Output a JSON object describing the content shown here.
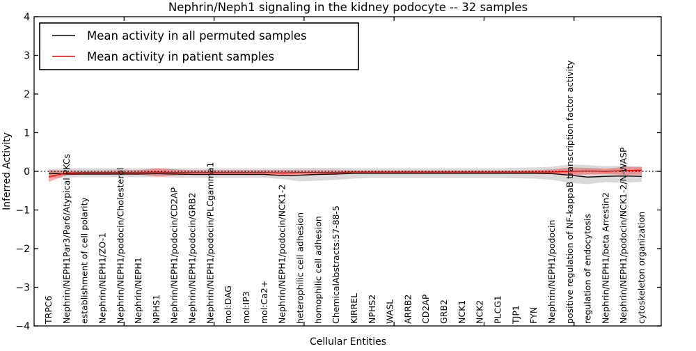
{
  "chart_data": {
    "type": "line",
    "title": "Nephrin/Neph1 signaling in the kidney podocyte -- 32 samples",
    "xlabel": "Cellular Entities",
    "ylabel": "Inferred Activity",
    "ylim": [
      -4,
      4
    ],
    "yticks": [
      4,
      3,
      2,
      1,
      0,
      -1,
      -2,
      -3,
      -4
    ],
    "ytick_labels": [
      "4",
      "3",
      "2",
      "1",
      "0",
      "−1",
      "−2",
      "−3",
      "−4"
    ],
    "grid": false,
    "zero_line": true,
    "legend_position": "upper-left",
    "categories": [
      "TRPC6",
      "Nephrin/NEPH1Par3/Par6/Atypical PKCs",
      "establishment of cell polarity",
      "Nephrin/NEPH1/ZO-1",
      "Nephrin/NEPH1/podocin/Cholesterol",
      "Nephrin/NEPH1",
      "NPHS1",
      "Nephrin/NEPH1/podocin/CD2AP",
      "Nephrin/NEPH1/podocin/GRB2",
      "Nephrin/NEPH1/podocin/PLCgamma1",
      "mol:DAG",
      "mol:IP3",
      "mol:Ca2+",
      "Nephrin/NEPH1/podocin/NCK1-2",
      "heterophilic cell adhesion",
      "homophilic cell adhesion",
      "ChemicalAbstracts:57-88-5",
      "KIRREL",
      "NPHS2",
      "WASL",
      "ARRB2",
      "CD2AP",
      "GRB2",
      "NCK1",
      "NCK2",
      "PLCG1",
      "TJP1",
      "FYN",
      "Nephrin/NEPH1/podocin",
      "positive regulation of NF-kappaB transcription factor activity",
      "regulation of endocytosis",
      "Nephrin/NEPH1/beta Arrestin2",
      "Nephrin/NEPH1/podocin/NCK1-2/N-WASP",
      "cytoskeleton organization"
    ],
    "series": [
      {
        "name": "Mean activity in all permuted samples",
        "color": "#000000",
        "band_color": "rgba(0,0,0,0.15)",
        "values": [
          -0.05,
          -0.07,
          -0.07,
          -0.07,
          -0.07,
          -0.07,
          -0.06,
          -0.07,
          -0.08,
          -0.08,
          -0.08,
          -0.08,
          -0.08,
          -0.11,
          -0.1,
          -0.08,
          -0.07,
          -0.05,
          -0.05,
          -0.05,
          -0.05,
          -0.05,
          -0.05,
          -0.05,
          -0.05,
          -0.05,
          -0.05,
          -0.05,
          -0.06,
          -0.1,
          -0.15,
          -0.13,
          -0.12,
          -0.13
        ],
        "band_upper": [
          0.06,
          0.08,
          0.08,
          0.08,
          0.08,
          0.08,
          0.08,
          0.08,
          0.08,
          0.08,
          0.08,
          0.08,
          0.08,
          0.08,
          0.09,
          0.09,
          0.09,
          0.08,
          0.08,
          0.08,
          0.08,
          0.08,
          0.08,
          0.08,
          0.08,
          0.08,
          0.09,
          0.1,
          0.12,
          0.18,
          0.16,
          0.13,
          0.15,
          0.11
        ],
        "band_lower": [
          -0.18,
          -0.16,
          -0.15,
          -0.15,
          -0.15,
          -0.15,
          -0.15,
          -0.16,
          -0.17,
          -0.17,
          -0.17,
          -0.17,
          -0.17,
          -0.2,
          -0.26,
          -0.24,
          -0.22,
          -0.19,
          -0.17,
          -0.17,
          -0.17,
          -0.17,
          -0.17,
          -0.17,
          -0.17,
          -0.17,
          -0.18,
          -0.19,
          -0.22,
          -0.3,
          -0.33,
          -0.28,
          -0.3,
          -0.27
        ]
      },
      {
        "name": "Mean activity in patient samples",
        "color": "#ff0000",
        "band_color": "rgba(255,0,0,0.32)",
        "values": [
          -0.14,
          -0.04,
          -0.03,
          -0.03,
          -0.03,
          -0.03,
          -0.02,
          -0.03,
          -0.03,
          -0.03,
          -0.03,
          -0.03,
          -0.03,
          -0.04,
          -0.03,
          -0.03,
          -0.03,
          -0.02,
          -0.02,
          -0.02,
          -0.02,
          -0.02,
          -0.02,
          -0.02,
          -0.02,
          -0.02,
          -0.02,
          -0.02,
          -0.02,
          0.0,
          0.01,
          0.0,
          0.02,
          0.03
        ],
        "band_upper": [
          0.03,
          0.02,
          0.02,
          0.02,
          0.03,
          0.03,
          0.08,
          0.05,
          0.03,
          0.03,
          0.03,
          0.03,
          0.03,
          0.03,
          0.03,
          0.03,
          0.03,
          0.02,
          0.02,
          0.02,
          0.02,
          0.02,
          0.02,
          0.02,
          0.02,
          0.02,
          0.02,
          0.03,
          0.05,
          0.1,
          0.09,
          0.07,
          0.11,
          0.12
        ],
        "band_lower": [
          -0.27,
          -0.1,
          -0.08,
          -0.08,
          -0.08,
          -0.08,
          -0.13,
          -0.11,
          -0.08,
          -0.08,
          -0.08,
          -0.08,
          -0.08,
          -0.09,
          -0.08,
          -0.08,
          -0.08,
          -0.06,
          -0.06,
          -0.06,
          -0.06,
          -0.06,
          -0.06,
          -0.06,
          -0.06,
          -0.06,
          -0.06,
          -0.06,
          -0.07,
          -0.09,
          -0.08,
          -0.07,
          -0.09,
          -0.08
        ]
      }
    ]
  },
  "colors": {
    "axis": "#000000",
    "background": "#ffffff",
    "zero_line": "#000000"
  }
}
